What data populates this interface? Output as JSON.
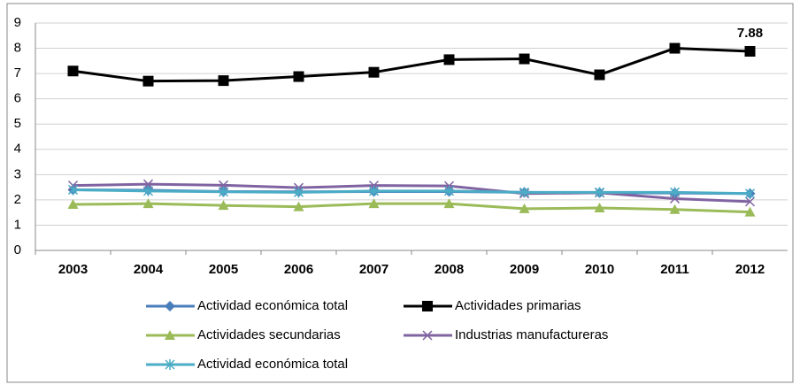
{
  "chart_data": {
    "type": "line",
    "categories": [
      "2003",
      "2004",
      "2005",
      "2006",
      "2007",
      "2008",
      "2009",
      "2010",
      "2011",
      "2012"
    ],
    "series": [
      {
        "name": "Actividad económica total",
        "color": "#4a7ebb",
        "marker": "diamond",
        "values": [
          2.4,
          2.38,
          2.33,
          2.32,
          2.33,
          2.33,
          2.3,
          2.28,
          2.27,
          2.25
        ]
      },
      {
        "name": "Actividades primarias",
        "color": "#000000",
        "marker": "square",
        "values": [
          7.1,
          6.7,
          6.72,
          6.88,
          7.05,
          7.55,
          7.58,
          6.95,
          8.0,
          7.88
        ],
        "value_labels": [
          null,
          null,
          null,
          null,
          null,
          null,
          null,
          null,
          null,
          "7.88"
        ]
      },
      {
        "name": "Actividades secundarias",
        "color": "#9bbb59",
        "marker": "triangle",
        "values": [
          1.82,
          1.85,
          1.78,
          1.73,
          1.85,
          1.85,
          1.65,
          1.68,
          1.62,
          1.52
        ]
      },
      {
        "name": "Industrias manufactureras",
        "color": "#8064a2",
        "marker": "x",
        "values": [
          2.57,
          2.62,
          2.58,
          2.48,
          2.57,
          2.55,
          2.25,
          2.28,
          2.05,
          1.93
        ]
      },
      {
        "name": "Actividad económica total",
        "color": "#4bacc6",
        "marker": "star",
        "values": [
          2.4,
          2.35,
          2.32,
          2.3,
          2.35,
          2.35,
          2.3,
          2.3,
          2.3,
          2.25
        ]
      }
    ],
    "ylim": [
      0,
      9
    ],
    "yticks": [
      0,
      1,
      2,
      3,
      4,
      5,
      6,
      7,
      8,
      9
    ],
    "grid": true,
    "legend": "bottom"
  }
}
